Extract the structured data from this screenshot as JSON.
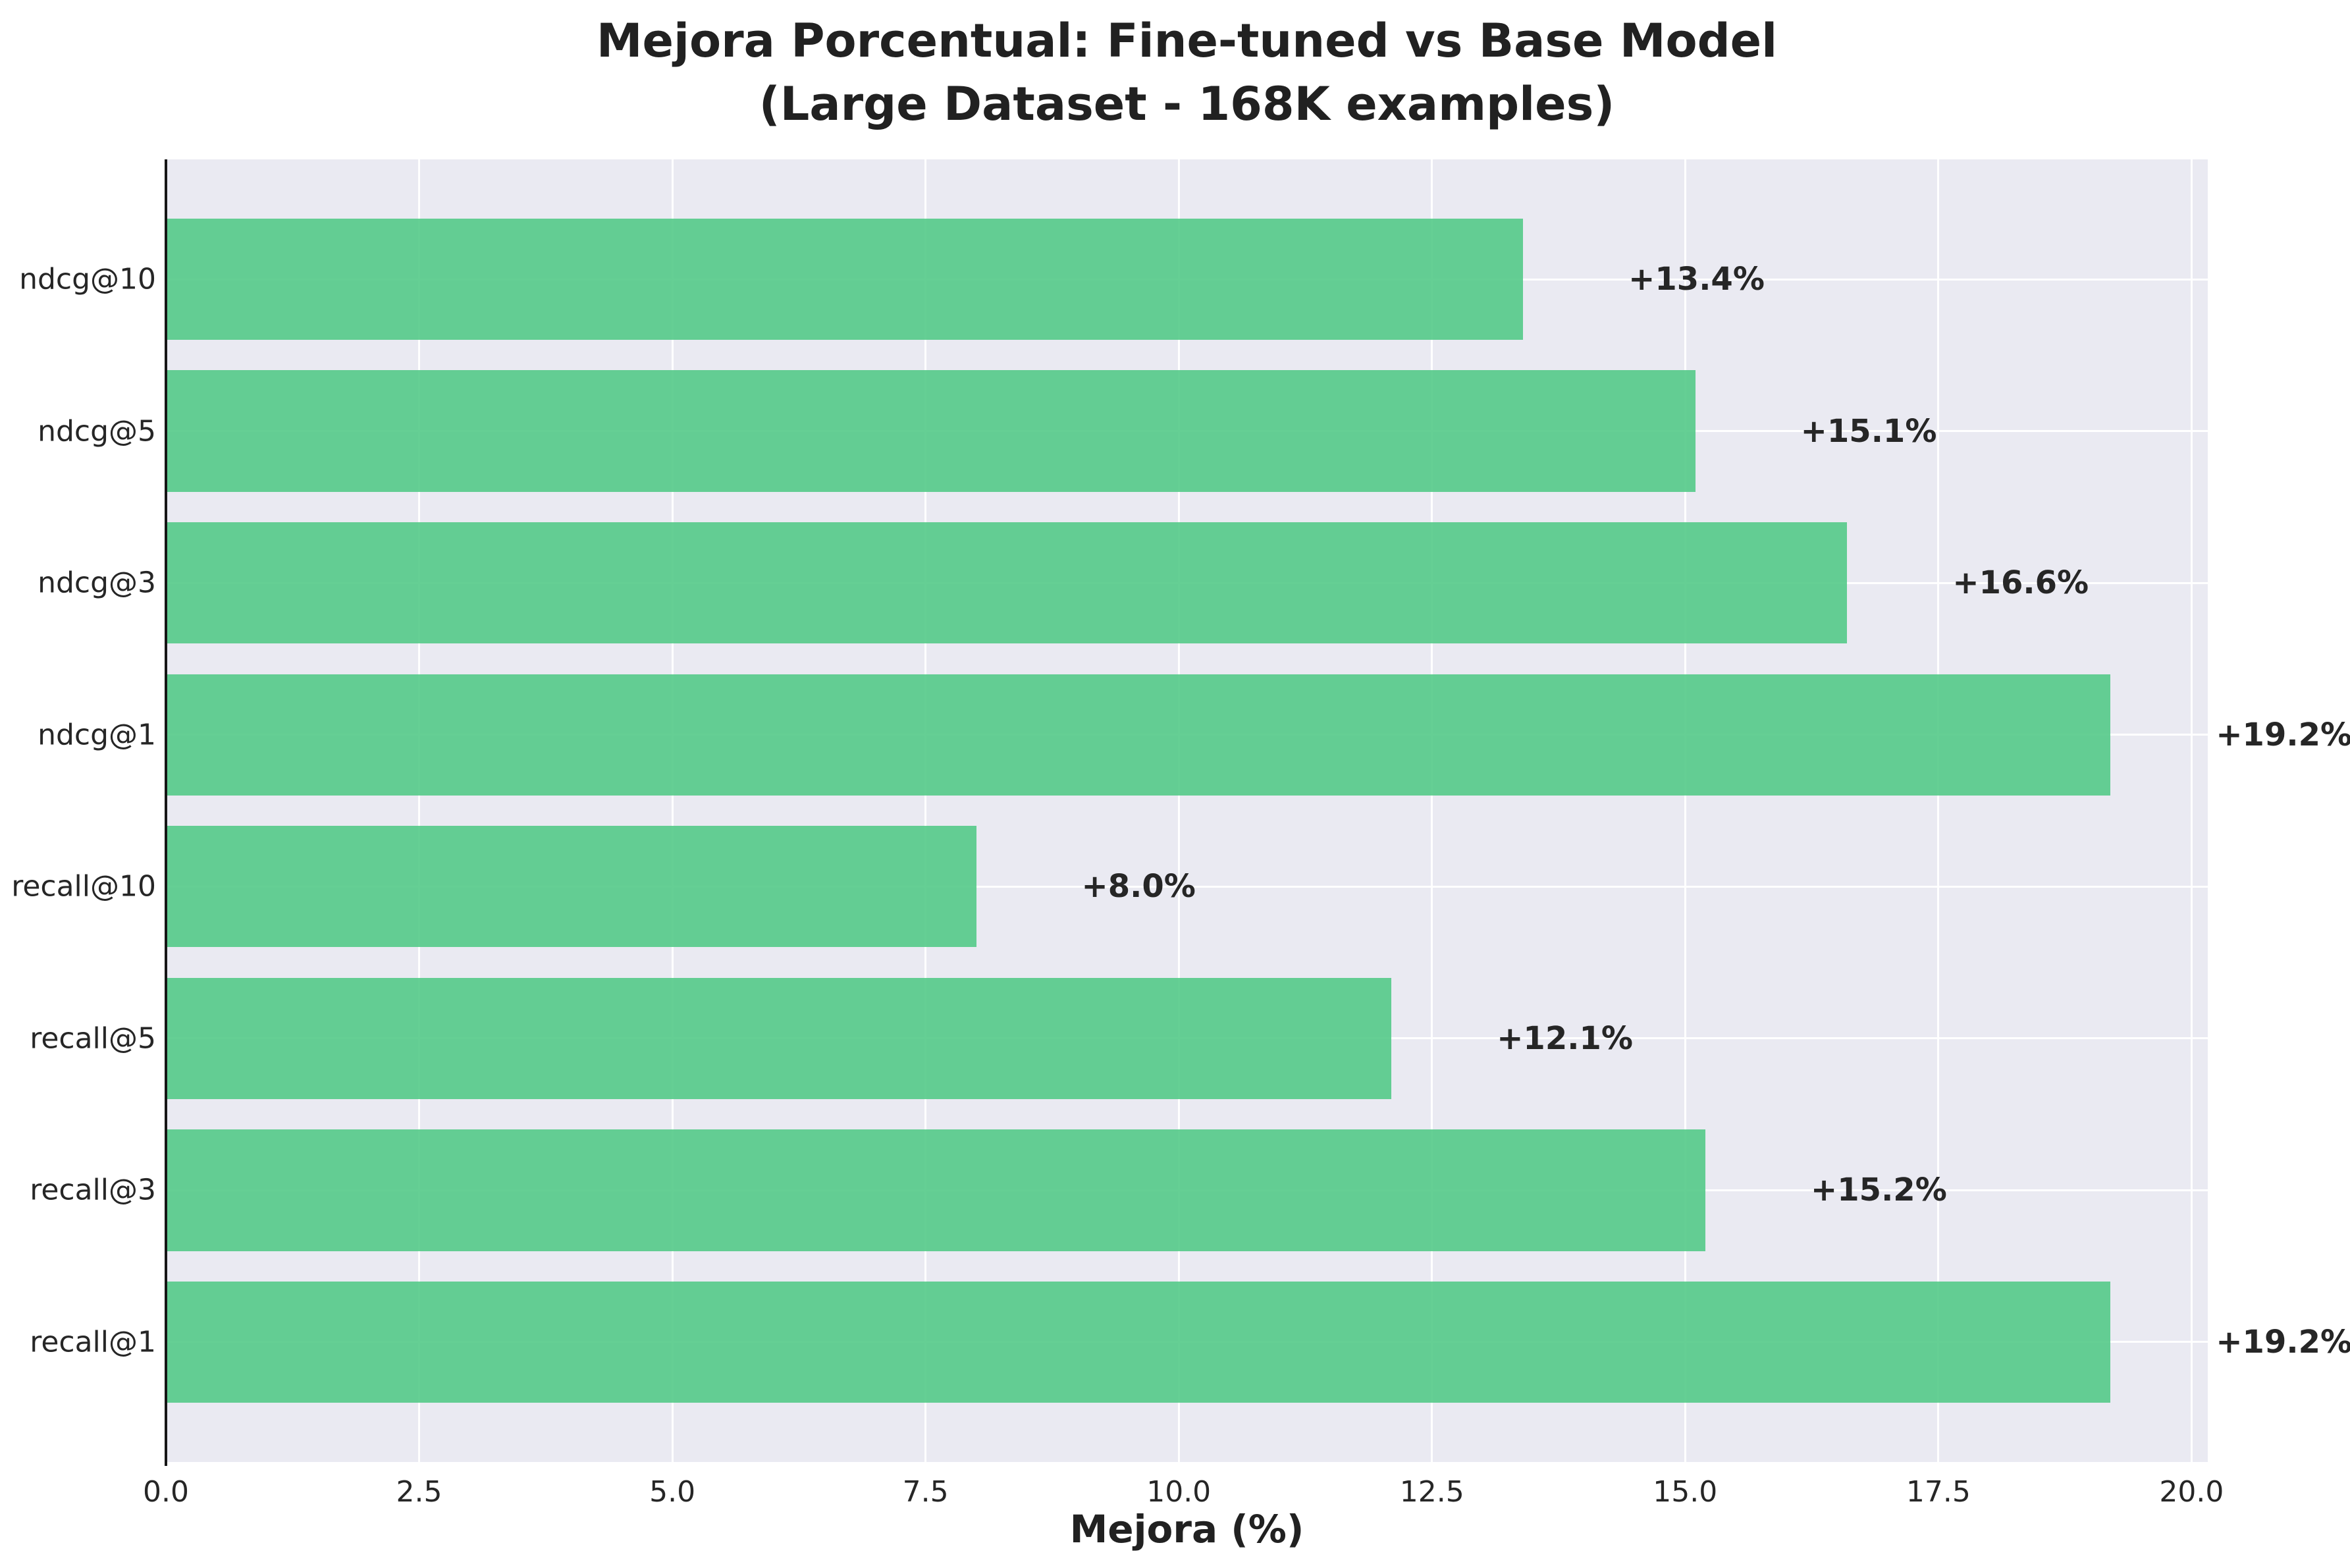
{
  "chart_data": {
    "type": "bar",
    "orientation": "horizontal",
    "title": "Mejora Porcentual: Fine-tuned vs Base Model",
    "subtitle": "(Large Dataset - 168K examples)",
    "xlabel": "Mejora (%)",
    "categories": [
      "ndcg@10",
      "ndcg@5",
      "ndcg@3",
      "ndcg@1",
      "recall@10",
      "recall@5",
      "recall@3",
      "recall@1"
    ],
    "values": [
      13.4,
      15.1,
      16.6,
      19.2,
      8.0,
      12.1,
      15.2,
      19.2
    ],
    "value_labels": [
      "+13.4%",
      "+15.1%",
      "+16.6%",
      "+19.2%",
      "+8.0%",
      "+12.1%",
      "+15.2%",
      "+19.2%"
    ],
    "x_ticks": [
      0.0,
      2.5,
      5.0,
      7.5,
      10.0,
      12.5,
      15.0,
      17.5,
      20.0
    ],
    "x_tick_labels": [
      "0.0",
      "2.5",
      "5.0",
      "7.5",
      "10.0",
      "12.5",
      "15.0",
      "17.5",
      "20.0"
    ],
    "xlim": [
      0,
      20.16
    ],
    "grid": true,
    "legend": false,
    "colors": {
      "bar": "#63cd93",
      "bar_rgba": "rgba(84,202,136,0.9)",
      "plot_background": "#eaeaf2",
      "gridline": "#ffffff",
      "text": "#262626",
      "spine": "#161616"
    }
  }
}
